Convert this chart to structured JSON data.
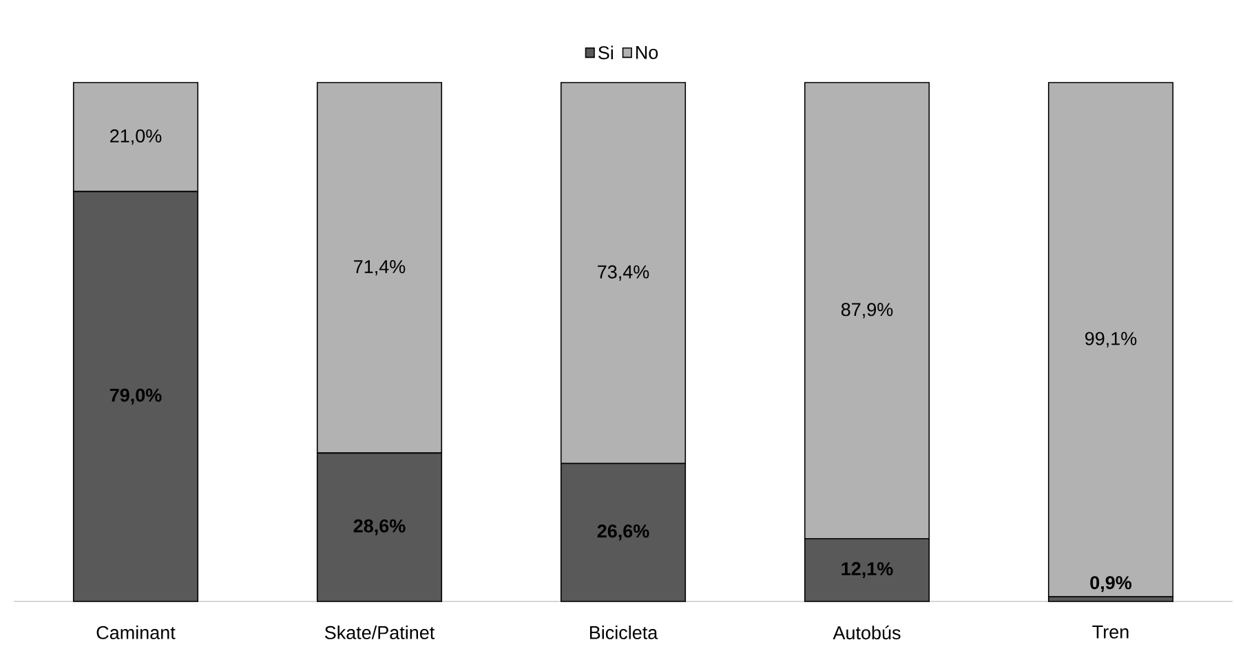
{
  "chart_data": {
    "type": "bar",
    "stacked": true,
    "legend": "top",
    "categories": [
      "Caminant",
      "Skate/Patinet",
      "Bicicleta",
      "Autobús",
      "Tren"
    ],
    "series": [
      {
        "name": "Si",
        "color": "#595959",
        "values": [
          79.0,
          28.6,
          26.6,
          12.1,
          0.9
        ],
        "value_labels": [
          "79,0%",
          "28,6%",
          "26,6%",
          "12,1%",
          "0,9%"
        ]
      },
      {
        "name": "No",
        "color": "#b2b2b2",
        "values": [
          21.0,
          71.4,
          73.4,
          87.9,
          99.1
        ],
        "value_labels": [
          "21,0%",
          "71,4%",
          "73,4%",
          "87,9%",
          "99,1%"
        ]
      }
    ]
  }
}
